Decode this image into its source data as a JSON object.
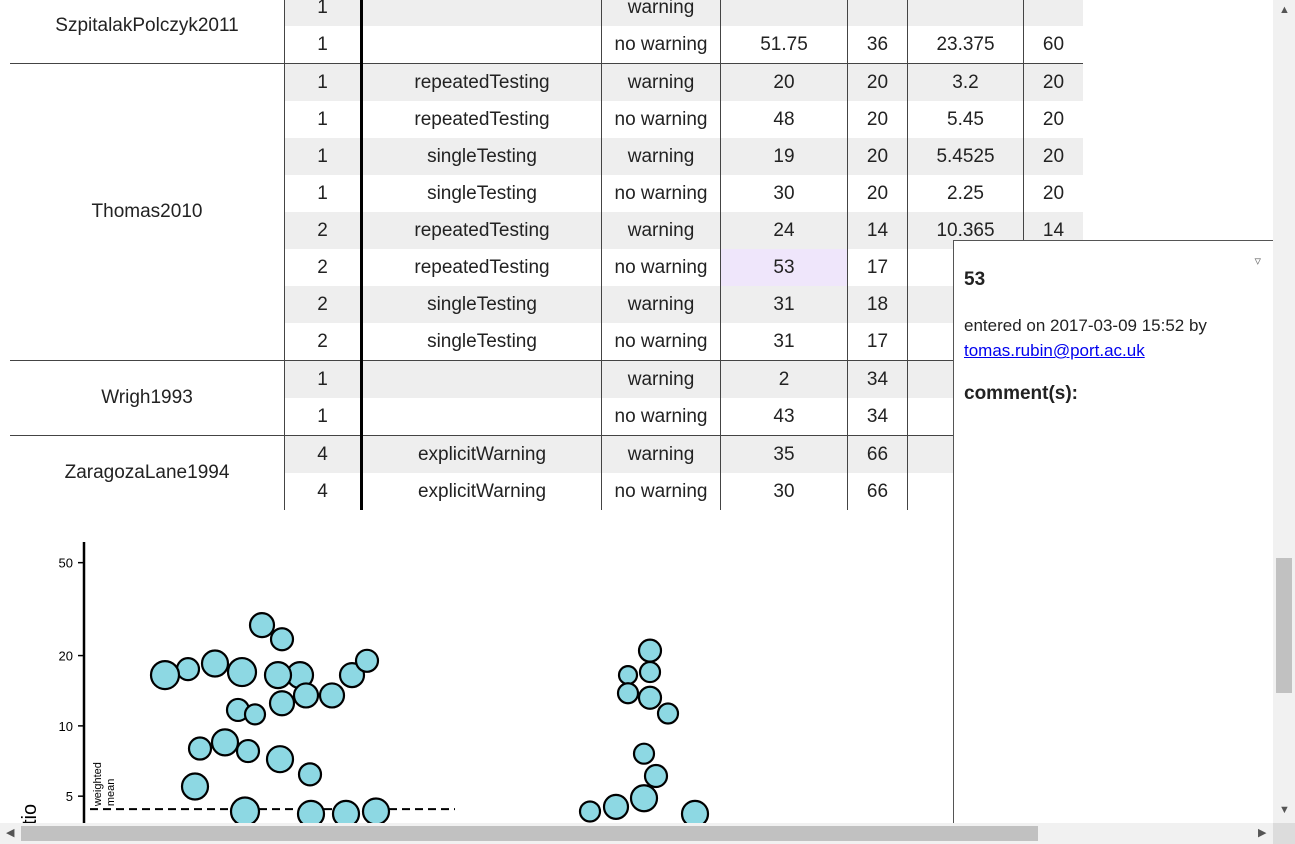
{
  "table": {
    "rows": [
      {
        "paper": "SzpitalakPolczyk2011",
        "exp": "1",
        "cond": "",
        "warn": "warning",
        "n1": "",
        "n2": "",
        "n3": "",
        "n4": ""
      },
      {
        "paper": "",
        "exp": "1",
        "cond": "",
        "warn": "no warning",
        "n1": "51.75",
        "n2": "36",
        "n3": "23.375",
        "n4": "60"
      },
      {
        "paper": "Thomas2010",
        "exp": "1",
        "cond": "repeatedTesting",
        "warn": "warning",
        "n1": "20",
        "n2": "20",
        "n3": "3.2",
        "n4": "20"
      },
      {
        "paper": "",
        "exp": "1",
        "cond": "repeatedTesting",
        "warn": "no warning",
        "n1": "48",
        "n2": "20",
        "n3": "5.45",
        "n4": "20"
      },
      {
        "paper": "",
        "exp": "1",
        "cond": "singleTesting",
        "warn": "warning",
        "n1": "19",
        "n2": "20",
        "n3": "5.4525",
        "n4": "20"
      },
      {
        "paper": "",
        "exp": "1",
        "cond": "singleTesting",
        "warn": "no warning",
        "n1": "30",
        "n2": "20",
        "n3": "2.25",
        "n4": "20"
      },
      {
        "paper": "",
        "exp": "2",
        "cond": "repeatedTesting",
        "warn": "warning",
        "n1": "24",
        "n2": "14",
        "n3": "10.365",
        "n4": "14"
      },
      {
        "paper": "",
        "exp": "2",
        "cond": "repeatedTesting",
        "warn": "no warning",
        "n1": "53",
        "n2": "17",
        "n3": "8.0",
        "n4": ""
      },
      {
        "paper": "",
        "exp": "2",
        "cond": "singleTesting",
        "warn": "warning",
        "n1": "31",
        "n2": "18",
        "n3": "9",
        "n4": ""
      },
      {
        "paper": "",
        "exp": "2",
        "cond": "singleTesting",
        "warn": "no warning",
        "n1": "31",
        "n2": "17",
        "n3": "1",
        "n4": ""
      },
      {
        "paper": "Wrigh1993",
        "exp": "1",
        "cond": "",
        "warn": "warning",
        "n1": "2",
        "n2": "34",
        "n3": "",
        "n4": ""
      },
      {
        "paper": "",
        "exp": "1",
        "cond": "",
        "warn": "no warning",
        "n1": "43",
        "n2": "34",
        "n3": "",
        "n4": ""
      },
      {
        "paper": "ZaragozaLane1994",
        "exp": "4",
        "cond": "explicitWarning",
        "warn": "warning",
        "n1": "35",
        "n2": "66",
        "n3": "",
        "n4": ""
      },
      {
        "paper": "",
        "exp": "4",
        "cond": "explicitWarning",
        "warn": "no warning",
        "n1": "30",
        "n2": "66",
        "n3": "",
        "n4": ""
      }
    ]
  },
  "chart_data": {
    "type": "scatter",
    "scale": "log",
    "ylim": [
      3.8,
      55
    ],
    "yticks": [
      5,
      10,
      20,
      50
    ],
    "ylabel_partial": "tio",
    "mean_label": "weighted mean",
    "mean_value": 4.4,
    "fill_color": "#8dd8e3",
    "groups": [
      {
        "values": [
          27,
          23.5,
          18.5,
          17.5,
          17,
          16.5,
          16.5,
          16.5,
          16.5,
          19,
          13.5,
          13.5,
          12.5,
          11.7,
          11.2,
          8.5,
          8,
          7.8,
          7.2,
          6.2,
          5.5,
          4.3,
          4.2,
          4.2,
          4.3
        ]
      },
      {
        "values": [
          21,
          17,
          16.5,
          13.8,
          13.2,
          11.3,
          7.6,
          6.1,
          4.9,
          4.5,
          4.3,
          4.2
        ]
      }
    ]
  },
  "popup": {
    "value": "53",
    "entered_text": "entered on 2017-03-09 15:52 by",
    "email": "tomas.rubin@port.ac.uk",
    "comments_label": "comment(s):",
    "toggle_glyph": "▿"
  },
  "scrollbar": {
    "up": "▲",
    "down": "▼",
    "left": "◀",
    "right": "▶"
  }
}
